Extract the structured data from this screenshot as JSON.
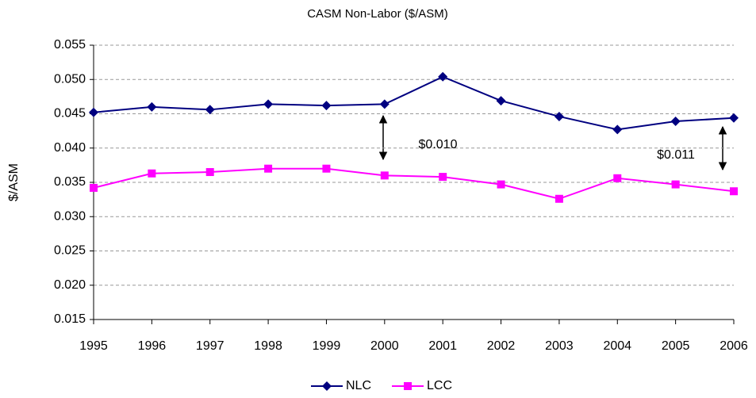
{
  "chart_data": {
    "type": "line",
    "title": "CASM Non-Labor ($/ASM)",
    "y_label": "$/ASM",
    "categories": [
      "1995",
      "1996",
      "1997",
      "1998",
      "1999",
      "2000",
      "2001",
      "2002",
      "2003",
      "2004",
      "2005",
      "2006"
    ],
    "series": [
      {
        "name": "NLC",
        "color": "#000080",
        "marker": "diamond",
        "values": [
          0.0452,
          0.046,
          0.0456,
          0.0464,
          0.0462,
          0.0464,
          0.0504,
          0.0469,
          0.0446,
          0.0427,
          0.0439,
          0.0444
        ]
      },
      {
        "name": "LCC",
        "color": "#ff00ff",
        "marker": "square",
        "values": [
          0.0342,
          0.0363,
          0.0365,
          0.037,
          0.037,
          0.036,
          0.0358,
          0.0347,
          0.0326,
          0.0356,
          0.0347,
          0.0337
        ]
      }
    ],
    "ylim": [
      0.015,
      0.055
    ],
    "yticks": [
      0.015,
      {
        "value": 0.02,
        "label": "0.020"
      },
      0.025,
      {
        "value": 0.03,
        "label": "0.030"
      },
      0.035,
      {
        "value": 0.04,
        "label": "0.040"
      },
      0.045,
      {
        "value": 0.05,
        "label": "0.050"
      },
      0.055
    ],
    "grid": true,
    "legend": "bottom",
    "annotations": [
      "$0.010",
      "$0.011"
    ]
  }
}
